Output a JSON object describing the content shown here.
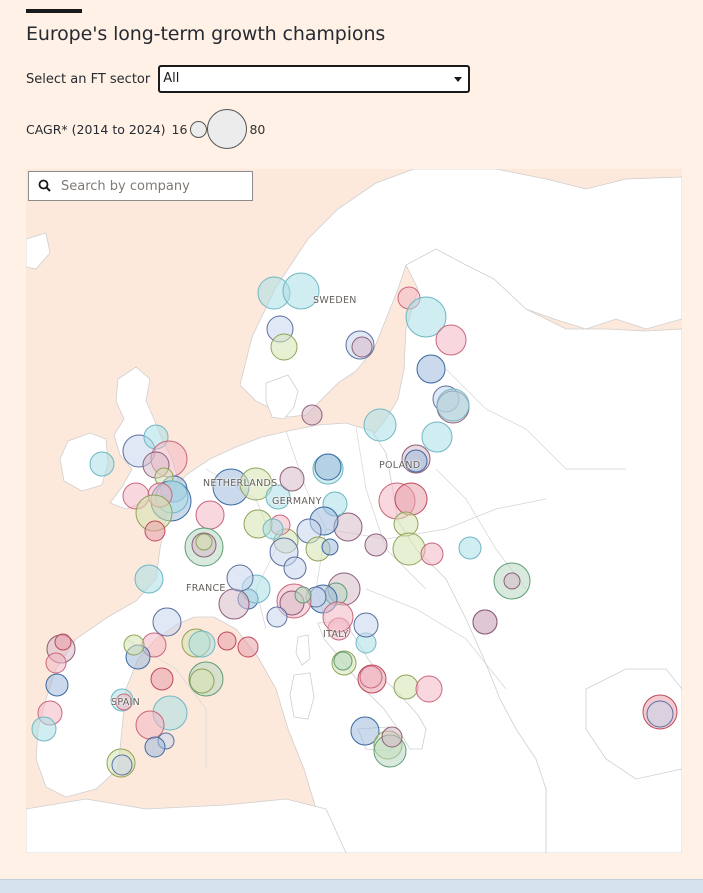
{
  "header": {
    "title": "Europe's long-term growth champions"
  },
  "filter": {
    "label": "Select an FT sector",
    "selected": "All"
  },
  "size_legend": {
    "label": "CAGR* (2014 to 2024)",
    "min_label": "16",
    "max_label": "80"
  },
  "search": {
    "placeholder": "Search by company",
    "value": ""
  },
  "map": {
    "country_labels": {
      "sweden": "SWEDEN",
      "poland": "POLAND",
      "netherlands": "NETHERLANDS",
      "germany": "GERMANY",
      "france": "FRANCE",
      "italy": "ITALY",
      "spain": "SPAIN"
    },
    "colors": {
      "sea": "#fde9dc",
      "land": "#ffffff",
      "border": "#c8c8c8",
      "page_background": "#fff1e5"
    },
    "bubble_palette": [
      "#a9dfe6",
      "#f2b6c2",
      "#c9d6ec",
      "#d6e3b0",
      "#d7b9c9",
      "#9ebadb",
      "#b7d9c1",
      "#e8a0ab"
    ]
  },
  "icons": {
    "search": "search-icon",
    "dropdown": "chevron-down-icon"
  }
}
